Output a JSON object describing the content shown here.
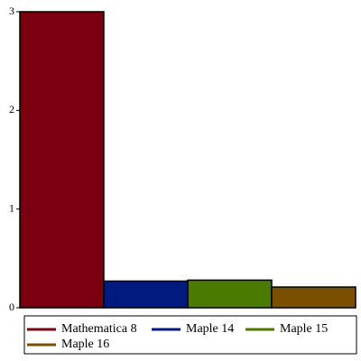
{
  "chart_data": {
    "type": "bar",
    "series": [
      {
        "name": "Mathematica 8",
        "color": "#7a0010",
        "values": [
          3
        ]
      },
      {
        "name": "Maple 14",
        "color": "#001a80",
        "values": [
          0.27
        ]
      },
      {
        "name": "Maple 15",
        "color": "#4a7a00",
        "values": [
          0.28
        ]
      },
      {
        "name": "Maple 16",
        "color": "#7a5000",
        "values": [
          0.21
        ]
      }
    ],
    "ylim": [
      0,
      3
    ],
    "yticks": [
      0,
      1,
      2,
      3
    ],
    "legend": "bottom"
  }
}
